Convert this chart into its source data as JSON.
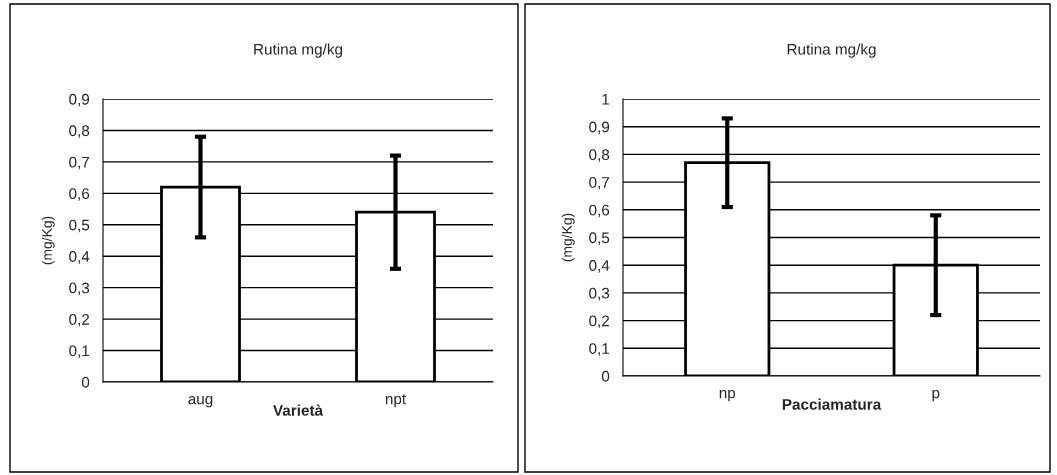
{
  "chart_data": [
    {
      "type": "bar",
      "title": "Rutina mg/kg",
      "xlabel": "Varietà",
      "ylabel": "(mg/Kg)",
      "categories": [
        "aug",
        "npt"
      ],
      "series": [
        {
          "color": "#ffffff",
          "values": [
            0.62,
            0.54
          ],
          "errors": [
            0.16,
            0.18
          ]
        }
      ],
      "ylim": [
        0,
        0.9
      ],
      "yticks": [
        0,
        {
          "value": 0.1,
          "label": "0,1"
        },
        {
          "value": 0.2,
          "label": "0,2"
        },
        {
          "value": 0.3,
          "label": "0,3"
        },
        {
          "value": 0.4,
          "label": "0,4"
        },
        {
          "value": 0.5,
          "label": "0,5"
        },
        {
          "value": 0.6,
          "label": "0,6"
        },
        {
          "value": 0.7,
          "label": "0,7"
        },
        {
          "value": 0.8,
          "label": "0,8"
        },
        {
          "value": 0.9,
          "label": "0,9"
        }
      ],
      "grid": "y",
      "legend": false
    },
    {
      "type": "bar",
      "title": "Rutina mg/kg",
      "xlabel": "Pacciamatura",
      "ylabel": "(mg/Kg)",
      "categories": [
        "np",
        "p"
      ],
      "series": [
        {
          "color": "#ffffff",
          "values": [
            0.77,
            0.4
          ],
          "errors": [
            0.16,
            0.18
          ]
        }
      ],
      "ylim": [
        0,
        1
      ],
      "yticks": [
        0,
        {
          "value": 0.1,
          "label": "0,1"
        },
        {
          "value": 0.2,
          "label": "0,2"
        },
        {
          "value": 0.3,
          "label": "0,3"
        },
        {
          "value": 0.4,
          "label": "0,4"
        },
        {
          "value": 0.5,
          "label": "0,5"
        },
        {
          "value": 0.6,
          "label": "0,6"
        },
        {
          "value": 0.7,
          "label": "0,7"
        },
        {
          "value": 0.8,
          "label": "0,8"
        },
        {
          "value": 0.9,
          "label": "0,9"
        },
        1
      ],
      "grid": "y",
      "legend": false
    }
  ]
}
